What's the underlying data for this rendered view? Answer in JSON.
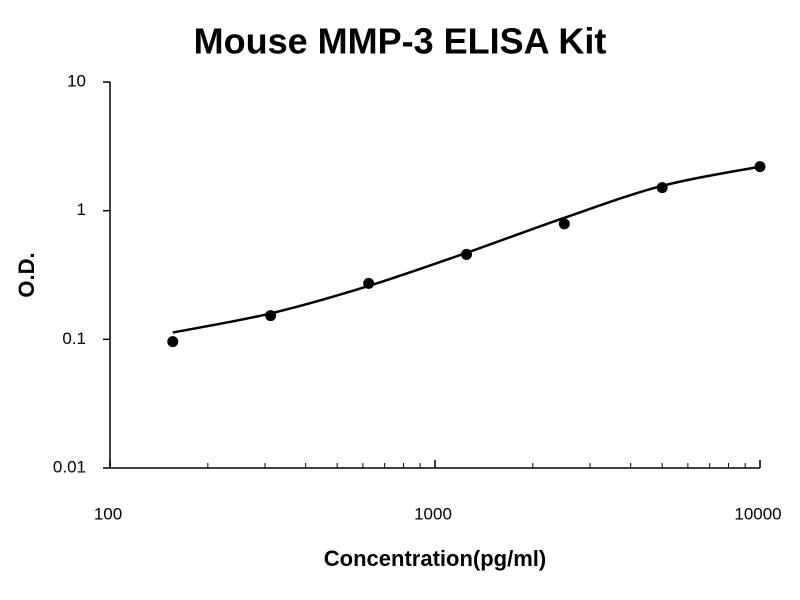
{
  "chart_data": {
    "type": "scatter",
    "title": "Mouse MMP-3 ELISA Kit",
    "x_label": "Concentration(pg/ml)",
    "y_label": "O.D.",
    "x": [
      156,
      312,
      625,
      1250,
      2500,
      5000,
      10000
    ],
    "series": [
      {
        "values": [
          0.096,
          0.153,
          0.272,
          0.457,
          0.79,
          1.51,
          2.2
        ],
        "color": "#000000"
      }
    ],
    "fit": {
      "values": [
        0.113,
        0.159,
        0.26,
        0.47,
        0.88,
        1.56,
        2.2
      ],
      "color": "#000000"
    },
    "xlog": true,
    "ylog": true,
    "xlim": [
      100,
      10000
    ],
    "ylim": [
      0.01,
      10
    ],
    "xticks": [
      100,
      1000,
      10000
    ],
    "yticks": [
      0.01,
      0.1,
      1,
      10
    ],
    "xminorticks": [
      200,
      300,
      400,
      500,
      600,
      700,
      800,
      900,
      2000,
      3000,
      4000,
      5000,
      6000,
      7000,
      8000,
      9000
    ]
  }
}
